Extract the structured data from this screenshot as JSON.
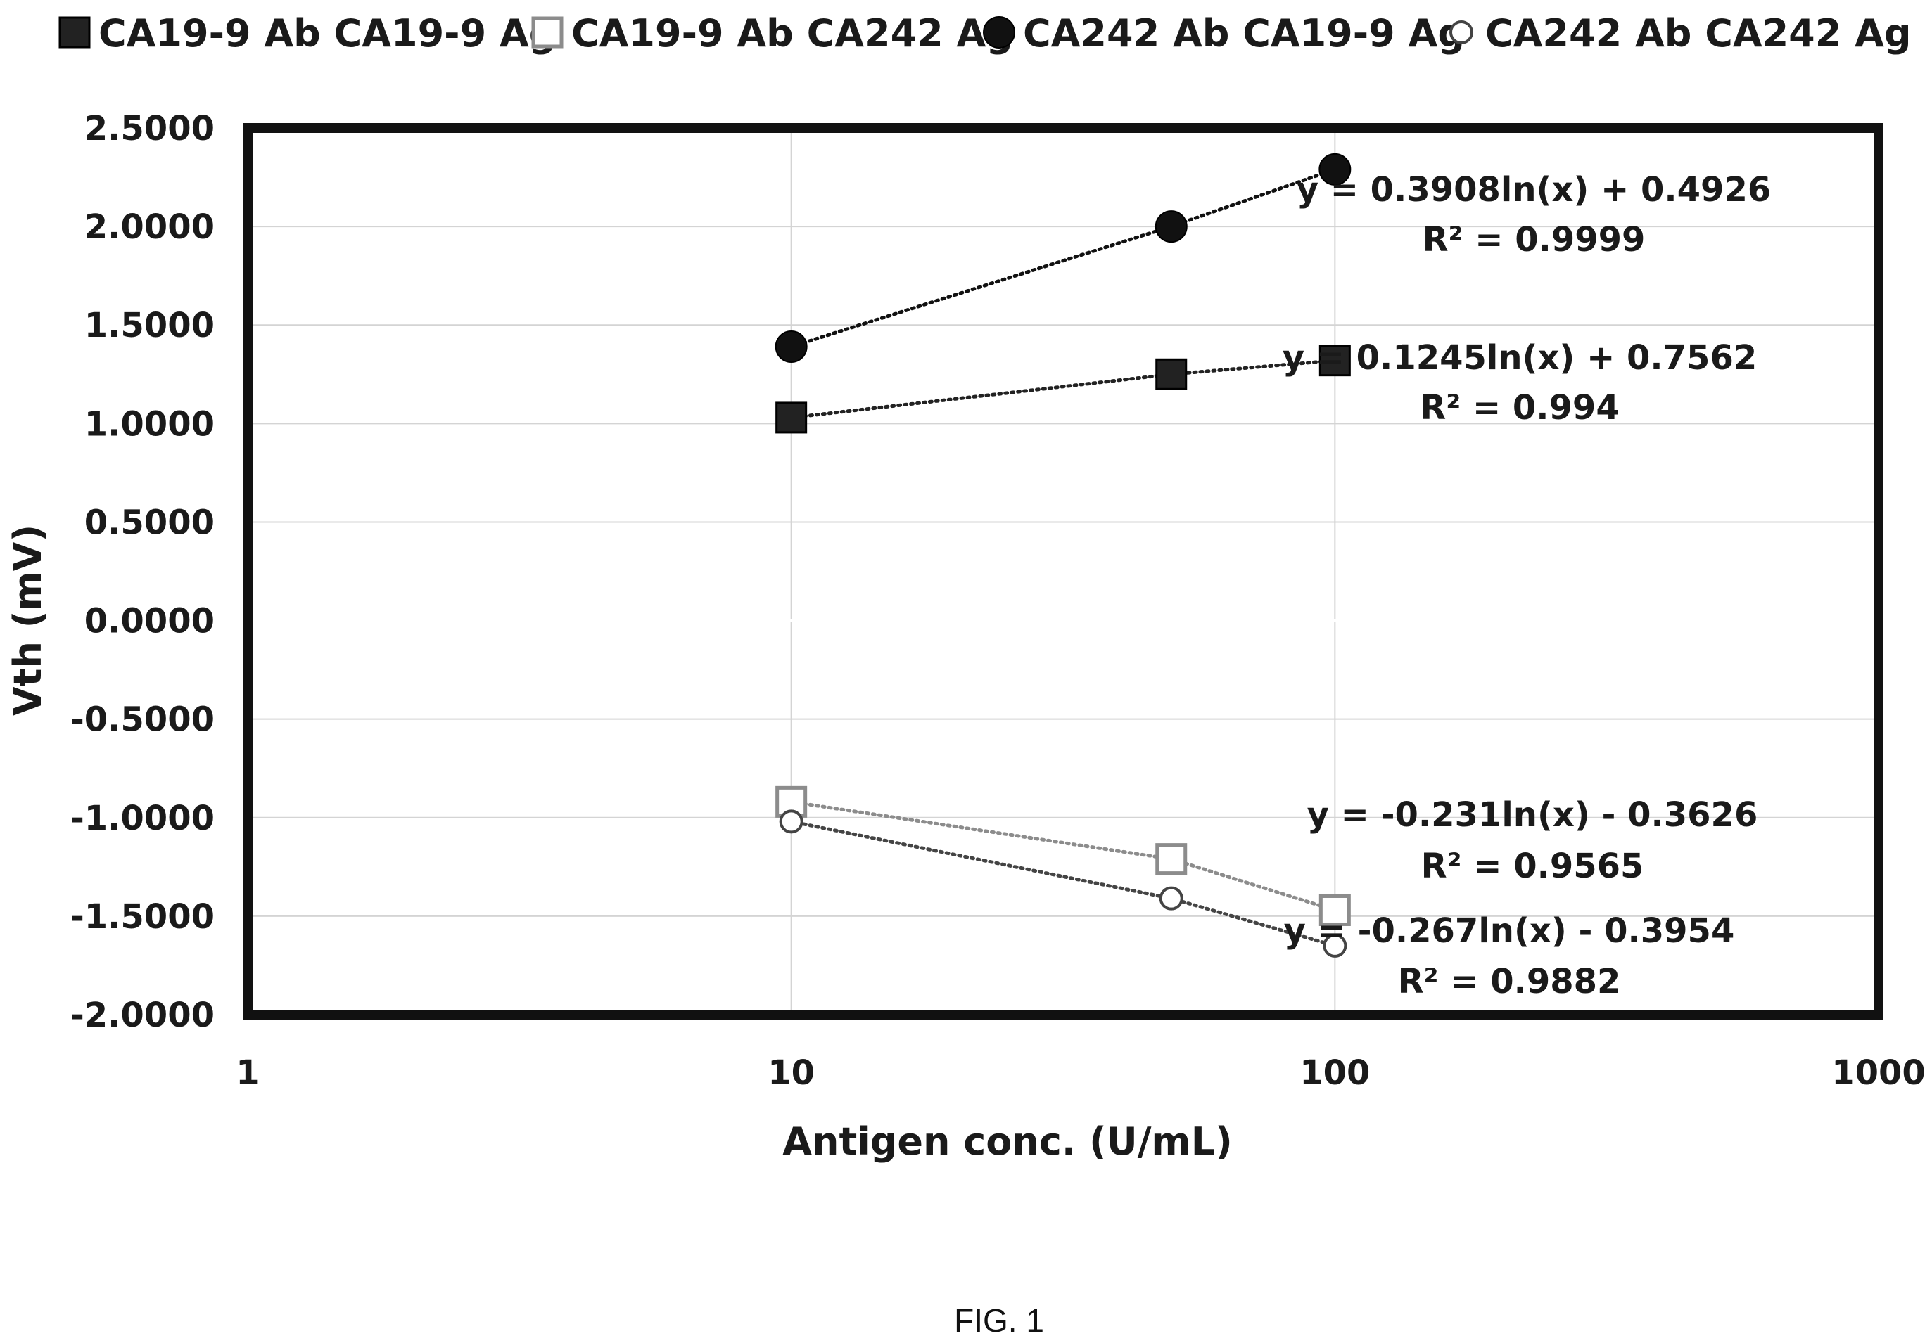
{
  "chart_data": {
    "type": "scatter",
    "x_scale": "log",
    "xlabel": "Antigen conc. (U/mL)",
    "ylabel": "Vth (mV)",
    "xlim": [
      1,
      1000
    ],
    "ylim": [
      -2,
      2.5
    ],
    "x_ticks": [
      "1",
      "10",
      "100",
      "1000"
    ],
    "y_ticks": [
      "2.5000",
      "2.0000",
      "1.5000",
      "1.0000",
      "0.5000",
      "0.0000",
      "-0.5000",
      "-1.0000",
      "-1.5000",
      "-2.0000"
    ],
    "grid": true,
    "legend_position": "top",
    "series": [
      {
        "name": "CA19-9 Ab CA19-9 Ag",
        "marker": "filled-square",
        "color": "#222222",
        "x": [
          10,
          50,
          100
        ],
        "y": [
          1.03,
          1.25,
          1.32
        ],
        "trendline": {
          "type": "logarithmic",
          "equation": "y = 0.1245ln(x) + 0.7562",
          "r2": "R² = 0.994"
        }
      },
      {
        "name": "CA19-9 Ab CA242 Ag",
        "marker": "open-square",
        "color": "#8c8c8c",
        "x": [
          10,
          50,
          100
        ],
        "y": [
          -0.92,
          -1.21,
          -1.47
        ],
        "trendline": {
          "type": "logarithmic",
          "equation": "y = -0.231ln(x) - 0.3626",
          "r2": "R² = 0.9565"
        }
      },
      {
        "name": "CA242 Ab CA19-9 Ag",
        "marker": "filled-circle",
        "color": "#111111",
        "x": [
          10,
          50,
          100
        ],
        "y": [
          1.39,
          2.0,
          2.29
        ],
        "trendline": {
          "type": "logarithmic",
          "equation": "y = 0.3908ln(x) + 0.4926",
          "r2": "R² = 0.9999"
        }
      },
      {
        "name": "CA242 Ab CA242 Ag",
        "marker": "open-circle",
        "color": "#444444",
        "x": [
          10,
          50,
          100
        ],
        "y": [
          -1.02,
          -1.41,
          -1.65
        ],
        "trendline": {
          "type": "logarithmic",
          "equation": "y = -0.267ln(x) - 0.3954",
          "r2": "R² = 0.9882"
        }
      }
    ]
  },
  "caption": "FIG. 1"
}
